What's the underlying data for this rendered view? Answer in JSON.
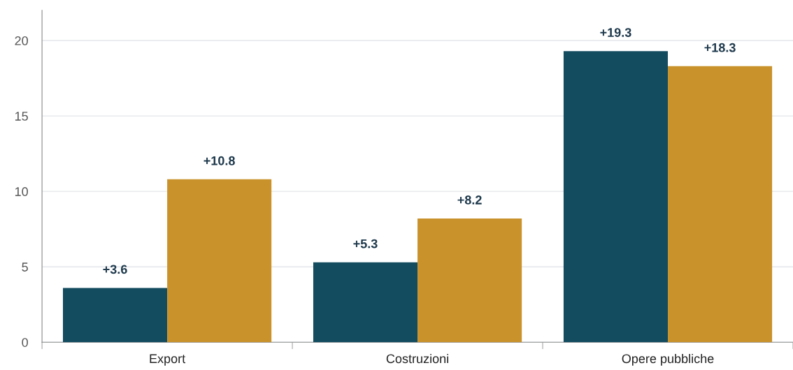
{
  "chart_data": {
    "type": "bar",
    "categories": [
      "Export",
      "Costruzioni",
      "Opere pubbliche"
    ],
    "series": [
      {
        "color": "#134b5f",
        "values": [
          3.6,
          5.3,
          19.3
        ],
        "value_labels": [
          "+3.6",
          "+5.3",
          "+19.3"
        ]
      },
      {
        "color": "#c9922b",
        "values": [
          10.8,
          8.2,
          18.3
        ],
        "value_labels": [
          "+10.8",
          "+8.2",
          "+18.3"
        ]
      }
    ],
    "ylim": [
      0,
      22
    ],
    "yticks": [
      0,
      5,
      10,
      15,
      20
    ],
    "grid": "y",
    "legend": false
  }
}
